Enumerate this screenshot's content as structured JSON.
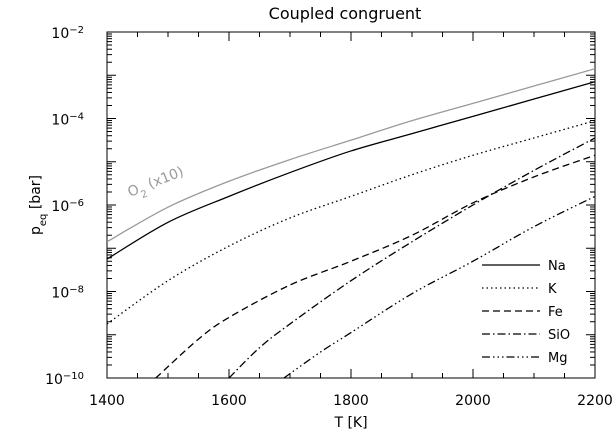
{
  "chart_data": {
    "type": "line",
    "title": "Coupled congruent",
    "xlabel": "T [K]",
    "ylabel_main": "p",
    "ylabel_sub": "eq",
    "ylabel_unit": " [bar]",
    "log_y": true,
    "xlim": [
      1400,
      2200
    ],
    "ylim": [
      1e-10,
      0.01
    ],
    "x_ticks": [
      {
        "value": 1400,
        "label": "1400"
      },
      {
        "value": 1600,
        "label": "1600"
      },
      {
        "value": 1800,
        "label": "1800"
      },
      {
        "value": 2000,
        "label": "2000"
      },
      {
        "value": 2200,
        "label": "2200"
      }
    ],
    "y_ticks": [
      {
        "exp": -10,
        "base": "10",
        "sup": "−10"
      },
      {
        "exp": -8,
        "base": "10",
        "sup": "−8"
      },
      {
        "exp": -6,
        "base": "10",
        "sup": "−6"
      },
      {
        "exp": -4,
        "base": "10",
        "sup": "−4"
      },
      {
        "exp": -2,
        "base": "10",
        "sup": "−2"
      }
    ],
    "legend_position": "bottom-right",
    "series": [
      {
        "name": "Na",
        "dash": "solid",
        "color": "#000000",
        "x": [
          1400,
          1500,
          1600,
          1700,
          1800,
          1900,
          2000,
          2100,
          2200
        ],
        "log10_y": [
          -7.25,
          -6.4,
          -5.8,
          -5.25,
          -4.75,
          -4.35,
          -3.95,
          -3.55,
          -3.15
        ]
      },
      {
        "name": "K",
        "dash": "dotted",
        "color": "#000000",
        "x": [
          1400,
          1500,
          1600,
          1700,
          1800,
          1900,
          2000,
          2100,
          2200
        ],
        "log10_y": [
          -8.75,
          -7.75,
          -6.95,
          -6.3,
          -5.8,
          -5.3,
          -4.85,
          -4.45,
          -4.05
        ]
      },
      {
        "name": "Fe",
        "dash": "dashed",
        "color": "#000000",
        "x": [
          1480,
          1550,
          1600,
          1700,
          1800,
          1900,
          2000,
          2100,
          2200
        ],
        "log10_y": [
          -10.0,
          -9.1,
          -8.6,
          -7.85,
          -7.3,
          -6.7,
          -5.95,
          -5.35,
          -4.85
        ]
      },
      {
        "name": "SiO",
        "dash": "dashdot",
        "color": "#000000",
        "x": [
          1600,
          1650,
          1700,
          1800,
          1900,
          2000,
          2100,
          2200
        ],
        "log10_y": [
          -10.0,
          -9.3,
          -8.75,
          -7.75,
          -6.85,
          -6.0,
          -5.2,
          -4.45
        ]
      },
      {
        "name": "Mg",
        "dash": "dashdotdotdot",
        "color": "#000000",
        "x": [
          1690,
          1750,
          1800,
          1900,
          2000,
          2100,
          2200
        ],
        "log10_y": [
          -10.0,
          -9.4,
          -8.95,
          -8.05,
          -7.3,
          -6.5,
          -5.8
        ]
      },
      {
        "name": "O2 (x10)",
        "dash": "solid",
        "color": "#9a9a9a",
        "x": [
          1400,
          1500,
          1600,
          1700,
          1800,
          1900,
          2000,
          2100,
          2200
        ],
        "log10_y": [
          -6.85,
          -6.05,
          -5.45,
          -4.95,
          -4.5,
          -4.05,
          -3.65,
          -3.25,
          -2.85
        ]
      }
    ],
    "legend": [
      {
        "name": "Na",
        "dash": "solid"
      },
      {
        "name": "K",
        "dash": "dotted"
      },
      {
        "name": "Fe",
        "dash": "dashed"
      },
      {
        "name": "SiO",
        "dash": "dashdot"
      },
      {
        "name": "Mg",
        "dash": "dashdotdotdot"
      }
    ],
    "annotation": {
      "base": "O",
      "sub": "2",
      "rest": " (x10)",
      "color": "#9a9a9a"
    }
  }
}
